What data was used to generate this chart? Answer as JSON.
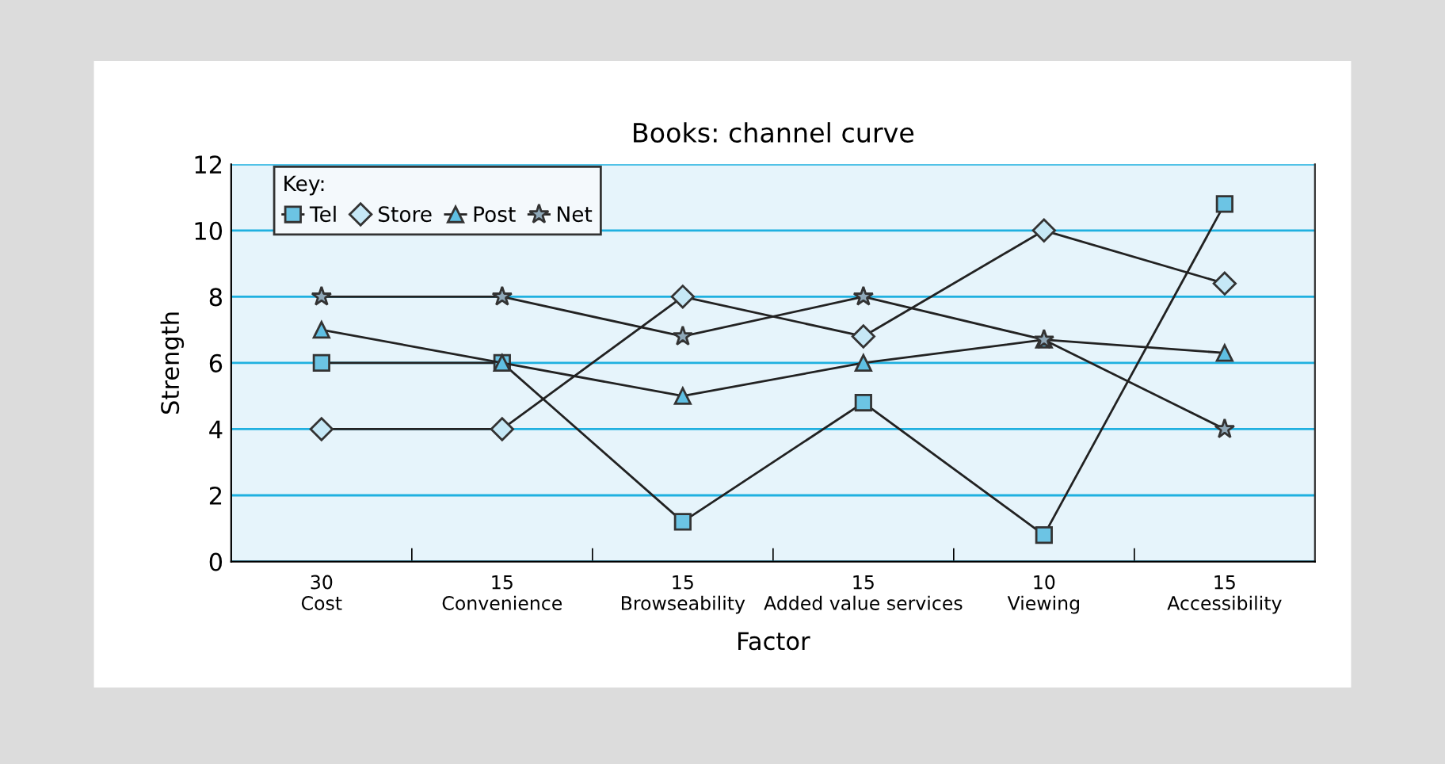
{
  "chart_data": {
    "type": "line",
    "title": "Books: channel curve",
    "xlabel": "Factor",
    "ylabel": "Strength",
    "legend_title": "Key:",
    "categories": [
      "30\nCost",
      "15\nConvenience",
      "15\nBrowseability",
      "15\nAdded value services",
      "10\nViewing",
      "15\nAccessibility"
    ],
    "series": [
      {
        "name": "Tel",
        "color": "#6cc4e4",
        "marker": "square",
        "values": [
          6,
          6,
          1.2,
          4.8,
          0.8,
          10.8
        ]
      },
      {
        "name": "Store",
        "color": "#c6e8f6",
        "marker": "diamond",
        "values": [
          4,
          4,
          8,
          6.8,
          10,
          8.4
        ]
      },
      {
        "name": "Post",
        "color": "#5fbfe3",
        "marker": "triangle",
        "values": [
          7,
          6,
          5,
          6,
          6.7,
          6.3
        ]
      },
      {
        "name": "Net",
        "color": "#8fa8b8",
        "marker": "star",
        "values": [
          8,
          8,
          6.8,
          8,
          6.7,
          4
        ]
      }
    ],
    "ylim": [
      0,
      12
    ],
    "yticks": [
      0,
      2,
      4,
      6,
      8,
      10,
      12
    ],
    "grid": "y",
    "legend": "top left",
    "line_style": "solid"
  }
}
